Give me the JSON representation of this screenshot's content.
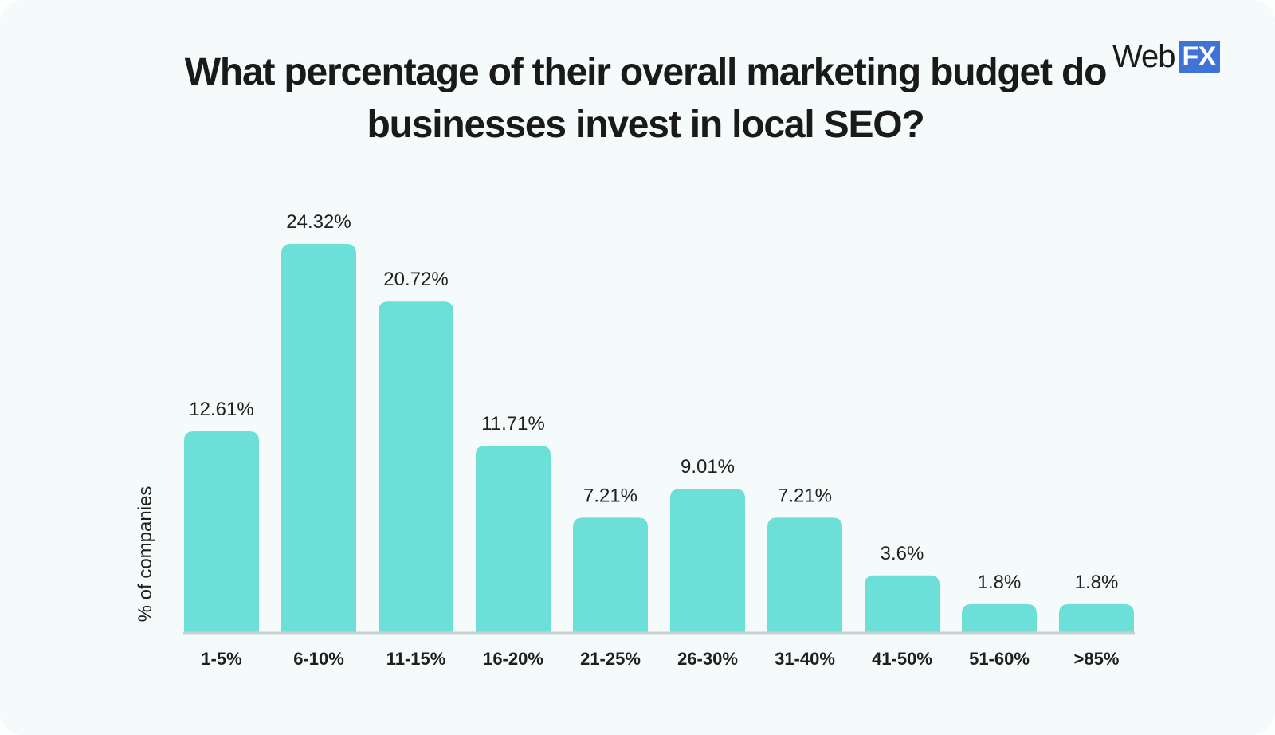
{
  "logo": {
    "word": "Web",
    "badge": "FX",
    "badge_color": "#3f73d6"
  },
  "colors": {
    "bar": "#6ce0d8",
    "background": "#f5fafa"
  },
  "chart_data": {
    "type": "bar",
    "title": "What percentage of their overall marketing budget do businesses invest in local SEO?",
    "xlabel": "",
    "ylabel": "% of companies",
    "categories": [
      "1-5%",
      "6-10%",
      "11-15%",
      "16-20%",
      "21-25%",
      "26-30%",
      "31-40%",
      "41-50%",
      "51-60%",
      ">85%"
    ],
    "values": [
      12.61,
      24.32,
      20.72,
      11.71,
      7.21,
      9.01,
      7.21,
      3.6,
      1.8,
      1.8
    ],
    "value_labels": [
      "12.61%",
      "24.32%",
      "20.72%",
      "11.71%",
      "7.21%",
      "9.01%",
      "7.21%",
      "3.6%",
      "1.8%",
      "1.8%"
    ],
    "ylim": [
      0,
      24.32
    ],
    "grid": false,
    "legend": "none"
  }
}
